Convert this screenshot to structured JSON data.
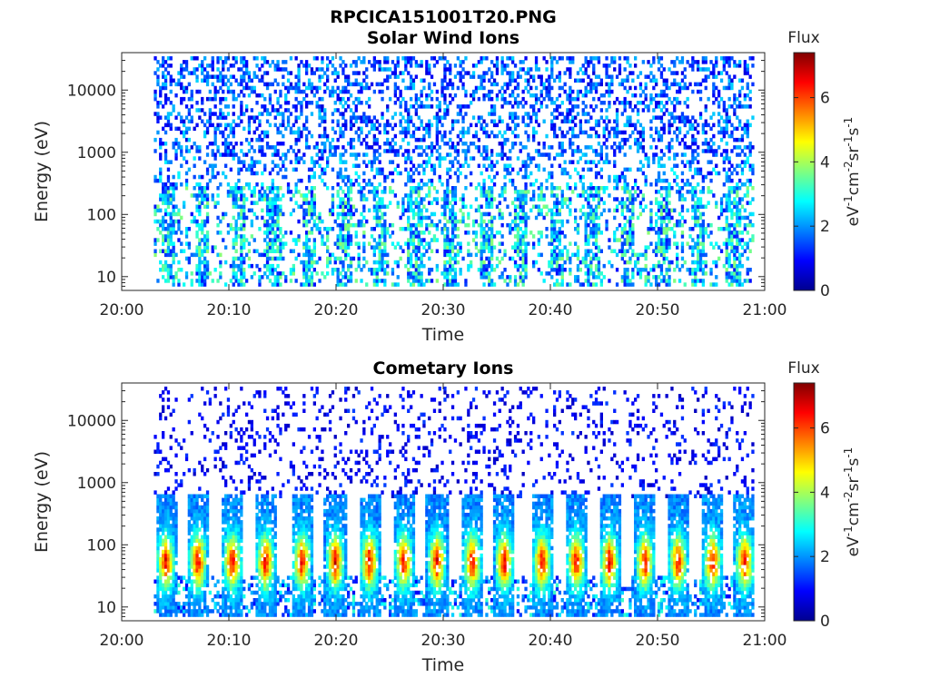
{
  "figure": {
    "filename_title": "RPCICA151001T20.PNG"
  },
  "colormap": {
    "name": "jet",
    "stops": [
      "#00008f",
      "#0000ff",
      "#00ffff",
      "#ffff00",
      "#ff0000",
      "#800000"
    ]
  },
  "chart_data": [
    {
      "type": "heatmap",
      "title": "Solar Wind Ions",
      "xlabel": "Time",
      "ylabel": "Energy (eV)",
      "y_scale": "log",
      "xlim": [
        "20:00",
        "21:00"
      ],
      "ylim": [
        6,
        40000
      ],
      "x_ticks": [
        "20:00",
        "20:10",
        "20:20",
        "20:30",
        "20:40",
        "20:50",
        "21:00"
      ],
      "y_ticks": [
        {
          "value": 10,
          "label": "10"
        },
        {
          "value": 100,
          "label": "100"
        },
        {
          "value": 1000,
          "label": "1000"
        },
        {
          "value": 10000,
          "label": "10000"
        }
      ],
      "data_time_range": [
        "20:03",
        "20:59"
      ],
      "colorbar": {
        "title": "Flux",
        "label": "eV-1cm-2sr-1s-1",
        "range": [
          0,
          7.4
        ],
        "ticks": [
          0,
          2,
          4,
          6
        ]
      },
      "pattern": "sparse low-flux (0-3) counts at 1-30 keV; periodic bursts at 20-500 eV with flux 1-4",
      "grid": "off"
    },
    {
      "type": "heatmap",
      "title": "Cometary Ions",
      "xlabel": "Time",
      "ylabel": "Energy (eV)",
      "y_scale": "log",
      "xlim": [
        "20:00",
        "21:00"
      ],
      "ylim": [
        6,
        40000
      ],
      "x_ticks": [
        "20:00",
        "20:10",
        "20:20",
        "20:30",
        "20:40",
        "20:50",
        "21:00"
      ],
      "y_ticks": [
        {
          "value": 10,
          "label": "10"
        },
        {
          "value": 100,
          "label": "100"
        },
        {
          "value": 1000,
          "label": "1000"
        },
        {
          "value": 10000,
          "label": "10000"
        }
      ],
      "data_time_range": [
        "20:03",
        "20:59"
      ],
      "colorbar": {
        "title": "Flux",
        "label": "eV-1cm-2sr-1s-1",
        "range": [
          0,
          7.4
        ],
        "ticks": [
          0,
          2,
          4,
          6
        ]
      },
      "pattern": "periodic bursts roughly every 3.3 min centred near 40-80 eV, peak flux about 6-6.5; sparse low-flux counts at 0.5-10 keV",
      "burst_minutes": [
        4.0,
        7.0,
        10.2,
        13.3,
        16.7,
        19.8,
        23.0,
        26.2,
        29.3,
        32.6,
        35.6,
        39.1,
        42.3,
        45.4,
        48.7,
        51.8,
        55.0,
        58.0
      ],
      "grid": "off"
    }
  ]
}
